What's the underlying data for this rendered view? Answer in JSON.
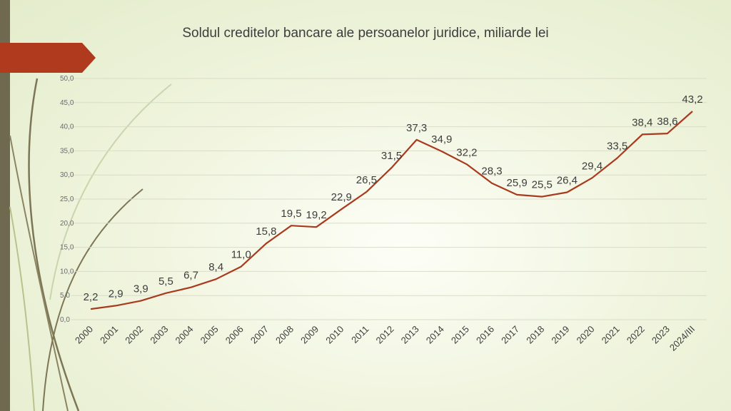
{
  "slide": {
    "title": "Soldul creditelor bancare ale persoanelor juridice, miliarde lei"
  },
  "colors": {
    "line": "#a83a1f",
    "accent": "#b03a1d",
    "side_bar": "#6f6a4f",
    "grid": "#d9dcc8"
  },
  "chart_data": {
    "type": "line",
    "title": "Soldul creditelor bancare ale persoanelor juridice, miliarde lei",
    "xlabel": "",
    "ylabel": "",
    "categories": [
      "2000",
      "2001",
      "2002",
      "2003",
      "2004",
      "2005",
      "2006",
      "2007",
      "2008",
      "2009",
      "2010",
      "2011",
      "2012",
      "2013",
      "2014",
      "2015",
      "2016",
      "2017",
      "2018",
      "2019",
      "2020",
      "2021",
      "2022",
      "2023",
      "2024/III"
    ],
    "series": [
      {
        "values": [
          2.2,
          2.9,
          3.9,
          5.5,
          6.7,
          8.4,
          11.0,
          15.8,
          19.5,
          19.2,
          22.9,
          26.5,
          31.5,
          37.3,
          34.9,
          32.2,
          28.3,
          25.9,
          25.5,
          26.4,
          29.4,
          33.5,
          38.4,
          38.6,
          43.2
        ],
        "labels": [
          "2,2",
          "2,9",
          "3,9",
          "5,5",
          "6,7",
          "8,4",
          "11,0",
          "15,8",
          "19,5",
          "19,2",
          "22,9",
          "26,5",
          "31,5",
          "37,3",
          "34,9",
          "32,2",
          "28,3",
          "25,9",
          "25,5",
          "26,4",
          "29,4",
          "33,5",
          "38,4",
          "38,6",
          "43,2"
        ]
      }
    ],
    "ylim": [
      0,
      50
    ],
    "yticks": [
      "0,0",
      "5,0",
      "10,0",
      "15,0",
      "20,0",
      "25,0",
      "30,0",
      "35,0",
      "40,0",
      "45,0",
      "50,0"
    ],
    "grid": true,
    "legend": "none"
  }
}
